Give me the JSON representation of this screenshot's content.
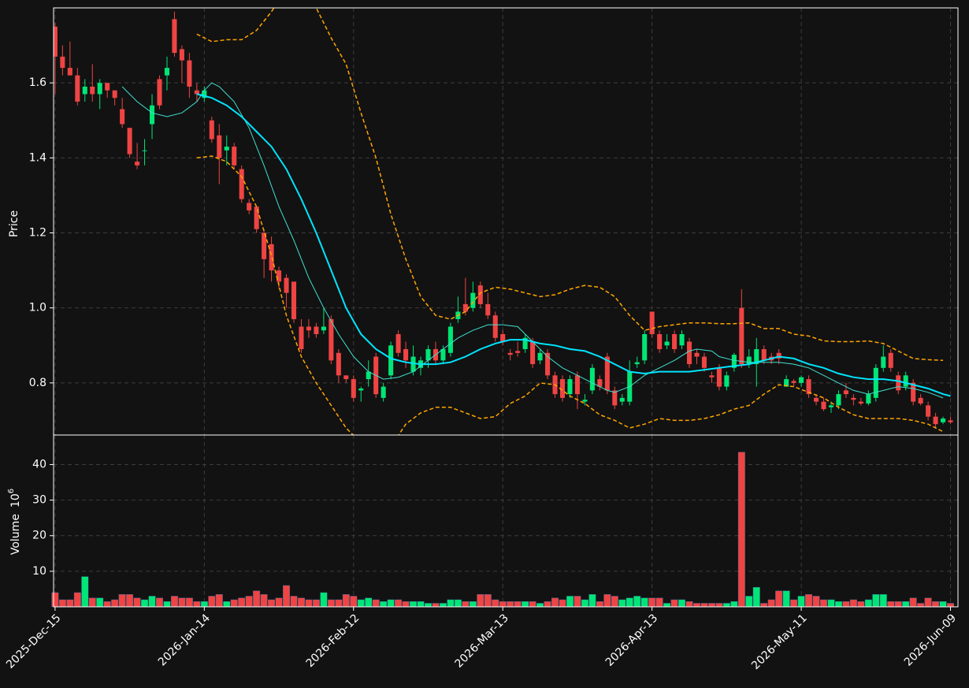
{
  "chart_data": {
    "type": "candlestick",
    "up_color": "#00e676",
    "down_color": "#ef4444",
    "grid": true,
    "ylabel": "Price",
    "xlim": [
      -0.2,
      121
    ],
    "ylim": [
      0.661,
      1.8
    ],
    "yticks": [
      0.8,
      {
        "value": 1,
        "label": "1.0"
      },
      1.2,
      1.4,
      1.6
    ],
    "categories": [
      "2025-Dec-15",
      null,
      null,
      null,
      null,
      null,
      null,
      null,
      null,
      null,
      null,
      null,
      null,
      null,
      null,
      null,
      null,
      null,
      null,
      null,
      "2026-Jan-14",
      null,
      null,
      null,
      null,
      null,
      null,
      null,
      null,
      null,
      null,
      null,
      null,
      null,
      null,
      null,
      null,
      null,
      null,
      null,
      "2026-Feb-12",
      null,
      null,
      null,
      null,
      null,
      null,
      null,
      null,
      null,
      null,
      null,
      null,
      null,
      null,
      null,
      null,
      null,
      null,
      null,
      "2026-Mar-13",
      null,
      null,
      null,
      null,
      null,
      null,
      null,
      null,
      null,
      null,
      null,
      null,
      null,
      null,
      null,
      null,
      null,
      null,
      null,
      "2026-Apr-13",
      null,
      null,
      null,
      null,
      null,
      null,
      null,
      null,
      null,
      null,
      null,
      null,
      null,
      null,
      null,
      null,
      null,
      null,
      null,
      "2026-May-11",
      null,
      null,
      null,
      null,
      null,
      null,
      null,
      null,
      null,
      null,
      null,
      null,
      null,
      null,
      null,
      null,
      null,
      null,
      null,
      "2026-Jun-09"
    ],
    "open": [
      1.75,
      1.67,
      1.64,
      1.62,
      1.57,
      1.59,
      1.57,
      1.6,
      1.58,
      1.53,
      1.48,
      1.39,
      1.42,
      1.49,
      1.61,
      1.62,
      1.77,
      1.69,
      1.66,
      1.58,
      1.56,
      1.5,
      1.46,
      1.42,
      1.43,
      1.37,
      1.28,
      1.27,
      1.2,
      1.17,
      1.1,
      1.08,
      1.07,
      0.95,
      0.95,
      0.95,
      0.94,
      0.97,
      0.88,
      0.82,
      0.81,
      0.78,
      0.81,
      0.87,
      0.76,
      0.82,
      0.93,
      0.89,
      0.83,
      0.84,
      0.86,
      0.89,
      0.86,
      0.88,
      0.97,
      1.01,
      1.0,
      1.06,
      1.01,
      0.98,
      0.93,
      0.88,
      0.885,
      0.89,
      0.91,
      0.86,
      0.88,
      0.82,
      0.81,
      0.77,
      0.82,
      0.75,
      0.78,
      0.81,
      0.87,
      0.78,
      0.75,
      0.75,
      0.85,
      0.86,
      0.99,
      0.93,
      0.9,
      0.93,
      0.9,
      0.91,
      0.88,
      0.87,
      0.82,
      0.84,
      0.79,
      0.84,
      1.0,
      0.85,
      0.85,
      0.89,
      0.87,
      0.88,
      0.79,
      0.805,
      0.8,
      0.81,
      0.76,
      0.75,
      0.735,
      0.74,
      0.78,
      0.76,
      0.75,
      0.745,
      0.76,
      0.84,
      0.88,
      0.82,
      0.79,
      0.8,
      0.76,
      0.74,
      0.71,
      0.695,
      0.7
    ],
    "high": [
      1.76,
      1.7,
      1.71,
      1.64,
      1.61,
      1.65,
      1.61,
      1.6,
      1.58,
      1.56,
      1.48,
      1.44,
      1.45,
      1.57,
      1.62,
      1.67,
      1.79,
      1.7,
      1.68,
      1.6,
      1.59,
      1.51,
      1.49,
      1.46,
      1.44,
      1.38,
      1.29,
      1.27,
      1.21,
      1.19,
      1.11,
      1.09,
      1.07,
      0.97,
      0.97,
      0.96,
      1.0,
      0.98,
      0.89,
      0.82,
      0.82,
      0.79,
      0.86,
      0.88,
      0.8,
      0.91,
      0.94,
      0.91,
      0.9,
      0.87,
      0.9,
      0.91,
      0.9,
      0.96,
      1.03,
      1.08,
      1.07,
      1.07,
      1.04,
      0.99,
      0.94,
      0.89,
      0.91,
      0.93,
      0.92,
      0.89,
      0.89,
      0.83,
      0.82,
      0.82,
      0.83,
      0.77,
      0.85,
      0.82,
      0.88,
      0.79,
      0.77,
      0.86,
      0.87,
      0.94,
      0.99,
      0.94,
      0.93,
      0.94,
      0.94,
      0.92,
      0.89,
      0.88,
      0.83,
      0.85,
      0.83,
      0.88,
      1.05,
      0.89,
      0.92,
      0.9,
      0.88,
      0.89,
      0.82,
      0.81,
      0.82,
      0.82,
      0.77,
      0.76,
      0.75,
      0.78,
      0.8,
      0.77,
      0.76,
      0.78,
      0.85,
      0.9,
      0.89,
      0.83,
      0.83,
      0.81,
      0.77,
      0.75,
      0.72,
      0.71,
      0.71
    ],
    "low": [
      1.57,
      1.62,
      1.62,
      1.54,
      1.55,
      1.55,
      1.53,
      1.56,
      1.54,
      1.48,
      1.4,
      1.37,
      1.38,
      1.45,
      1.53,
      1.58,
      1.67,
      1.6,
      1.56,
      1.55,
      1.55,
      1.44,
      1.33,
      1.38,
      1.37,
      1.28,
      1.25,
      1.2,
      1.08,
      1.07,
      1.05,
      1.0,
      0.96,
      0.88,
      0.92,
      0.92,
      0.93,
      0.85,
      0.8,
      0.8,
      0.75,
      0.75,
      0.79,
      0.76,
      0.75,
      0.81,
      0.87,
      0.84,
      0.82,
      0.82,
      0.84,
      0.85,
      0.85,
      0.87,
      0.96,
      0.98,
      0.99,
      1.0,
      0.97,
      0.91,
      0.9,
      0.86,
      0.87,
      0.88,
      0.84,
      0.85,
      0.81,
      0.76,
      0.75,
      0.76,
      0.73,
      0.74,
      0.77,
      0.78,
      0.77,
      0.73,
      0.74,
      0.74,
      0.84,
      0.85,
      0.92,
      0.88,
      0.89,
      0.88,
      0.89,
      0.84,
      0.85,
      0.83,
      0.8,
      0.78,
      0.78,
      0.83,
      0.84,
      0.84,
      0.79,
      0.85,
      0.85,
      0.85,
      0.79,
      0.79,
      0.79,
      0.76,
      0.74,
      0.725,
      0.72,
      0.73,
      0.76,
      0.74,
      0.74,
      0.74,
      0.75,
      0.83,
      0.83,
      0.77,
      0.78,
      0.74,
      0.74,
      0.7,
      0.68,
      0.69,
      0.69
    ],
    "close": [
      1.67,
      1.64,
      1.62,
      1.55,
      1.59,
      1.57,
      1.6,
      1.58,
      1.56,
      1.49,
      1.41,
      1.38,
      1.42,
      1.54,
      1.54,
      1.64,
      1.68,
      1.66,
      1.59,
      1.57,
      1.58,
      1.45,
      1.4,
      1.43,
      1.38,
      1.29,
      1.26,
      1.21,
      1.13,
      1.1,
      1.07,
      1.04,
      0.97,
      0.89,
      0.94,
      0.93,
      0.95,
      0.86,
      0.82,
      0.81,
      0.76,
      0.785,
      0.83,
      0.77,
      0.79,
      0.9,
      0.88,
      0.86,
      0.87,
      0.86,
      0.89,
      0.86,
      0.89,
      0.95,
      0.99,
      0.99,
      1.04,
      1.01,
      0.98,
      0.92,
      0.91,
      0.875,
      0.88,
      0.92,
      0.85,
      0.88,
      0.82,
      0.77,
      0.76,
      0.81,
      0.77,
      0.755,
      0.84,
      0.79,
      0.78,
      0.74,
      0.76,
      0.83,
      0.855,
      0.93,
      0.93,
      0.89,
      0.91,
      0.89,
      0.93,
      0.85,
      0.87,
      0.84,
      0.815,
      0.79,
      0.82,
      0.875,
      0.85,
      0.87,
      0.89,
      0.86,
      0.86,
      0.865,
      0.81,
      0.8,
      0.815,
      0.77,
      0.75,
      0.73,
      0.74,
      0.77,
      0.77,
      0.755,
      0.745,
      0.77,
      0.84,
      0.87,
      0.84,
      0.78,
      0.82,
      0.75,
      0.745,
      0.71,
      0.69,
      0.705,
      0.695
    ],
    "overlays": [
      {
        "color": "#40e0d0",
        "width": 1,
        "dashed": false,
        "x": [
          9,
          11,
          13,
          15,
          17,
          19,
          20,
          21,
          22,
          24,
          26,
          28,
          30,
          32,
          34,
          36,
          38,
          40,
          42,
          44,
          46,
          48,
          50,
          52,
          54,
          56,
          58,
          60,
          62,
          64,
          66,
          68,
          70,
          72,
          74,
          75,
          77,
          79,
          81,
          83,
          85,
          86,
          88,
          89,
          91,
          93,
          95,
          97,
          99,
          101,
          103,
          105,
          107,
          109,
          111,
          113,
          115,
          117,
          119
        ],
        "values": [
          1.59,
          1.55,
          1.52,
          1.51,
          1.52,
          1.55,
          1.58,
          1.6,
          1.59,
          1.55,
          1.48,
          1.38,
          1.27,
          1.18,
          1.08,
          1.0,
          0.93,
          0.87,
          0.83,
          0.81,
          0.815,
          0.83,
          0.86,
          0.89,
          0.92,
          0.94,
          0.955,
          0.955,
          0.95,
          0.91,
          0.87,
          0.84,
          0.82,
          0.8,
          0.78,
          0.775,
          0.79,
          0.82,
          0.84,
          0.86,
          0.885,
          0.89,
          0.885,
          0.87,
          0.86,
          0.855,
          0.855,
          0.855,
          0.85,
          0.84,
          0.82,
          0.8,
          0.78,
          0.77,
          0.78,
          0.79,
          0.785,
          0.775,
          0.76
        ]
      },
      {
        "color": "#00e5ff",
        "width": 2,
        "dashed": false,
        "x": [
          19,
          21,
          23,
          25,
          27,
          29,
          31,
          33,
          35,
          37,
          39,
          41,
          43,
          45,
          47,
          49,
          51,
          53,
          55,
          57,
          59,
          61,
          63,
          65,
          67,
          69,
          71,
          73,
          75,
          77,
          79,
          81,
          83,
          85,
          87,
          89,
          91,
          93,
          95,
          97,
          99,
          101,
          103,
          105,
          107,
          109,
          111,
          113,
          115,
          117,
          119,
          120
        ],
        "values": [
          1.57,
          1.56,
          1.54,
          1.51,
          1.47,
          1.43,
          1.37,
          1.29,
          1.2,
          1.1,
          1.0,
          0.93,
          0.89,
          0.865,
          0.855,
          0.85,
          0.85,
          0.855,
          0.87,
          0.89,
          0.905,
          0.915,
          0.915,
          0.905,
          0.9,
          0.89,
          0.885,
          0.87,
          0.85,
          0.83,
          0.825,
          0.83,
          0.83,
          0.83,
          0.835,
          0.84,
          0.845,
          0.85,
          0.86,
          0.87,
          0.865,
          0.85,
          0.84,
          0.825,
          0.815,
          0.81,
          0.81,
          0.805,
          0.795,
          0.785,
          0.77,
          0.765
        ]
      },
      {
        "color": "#ffa500",
        "width": 1.5,
        "dashed": true,
        "x": [
          19,
          21,
          23,
          25,
          27,
          29,
          30,
          32,
          34,
          35,
          37,
          39,
          41,
          43,
          45,
          47,
          49,
          51,
          53,
          55,
          57,
          59,
          61,
          63,
          65,
          67,
          69,
          71,
          73,
          75,
          77,
          79,
          81,
          83,
          85,
          87,
          89,
          91,
          93,
          95,
          97,
          99,
          101,
          103,
          105,
          107,
          109,
          111,
          113,
          115,
          117,
          119
        ],
        "values": [
          1.73,
          1.71,
          1.715,
          1.715,
          1.74,
          1.79,
          1.82,
          1.86,
          1.84,
          1.8,
          1.72,
          1.65,
          1.52,
          1.4,
          1.25,
          1.13,
          1.03,
          0.98,
          0.97,
          0.99,
          1.04,
          1.055,
          1.05,
          1.04,
          1.03,
          1.035,
          1.05,
          1.06,
          1.055,
          1.03,
          0.98,
          0.94,
          0.95,
          0.955,
          0.96,
          0.96,
          0.958,
          0.958,
          0.96,
          0.945,
          0.945,
          0.93,
          0.925,
          0.912,
          0.91,
          0.91,
          0.912,
          0.905,
          0.885,
          0.865,
          0.862,
          0.86
        ]
      },
      {
        "color": "#ffa500",
        "width": 1.5,
        "dashed": true,
        "x": [
          19,
          21,
          23,
          25,
          27,
          29,
          31,
          33,
          35,
          37,
          39,
          41,
          43,
          45,
          47,
          49,
          51,
          53,
          55,
          57,
          59,
          61,
          63,
          65,
          67,
          69,
          71,
          73,
          75,
          77,
          79,
          81,
          83,
          85,
          87,
          89,
          91,
          93,
          95,
          97,
          99,
          101,
          103,
          105,
          107,
          109,
          111,
          113,
          115,
          117,
          119
        ],
        "values": [
          1.4,
          1.405,
          1.39,
          1.35,
          1.27,
          1.14,
          0.98,
          0.87,
          0.8,
          0.74,
          0.68,
          0.64,
          0.62,
          0.63,
          0.69,
          0.72,
          0.735,
          0.735,
          0.72,
          0.705,
          0.71,
          0.745,
          0.765,
          0.8,
          0.795,
          0.765,
          0.745,
          0.715,
          0.7,
          0.68,
          0.69,
          0.705,
          0.7,
          0.7,
          0.705,
          0.715,
          0.73,
          0.74,
          0.77,
          0.795,
          0.79,
          0.775,
          0.76,
          0.735,
          0.715,
          0.705,
          0.705,
          0.705,
          0.7,
          0.69,
          0.67
        ]
      }
    ],
    "volume": {
      "ylabel": "Volume",
      "scale_base": "10",
      "scale_exponent": "6",
      "ylim": [
        0,
        48.3
      ],
      "yticks": [
        10,
        20,
        30,
        40
      ],
      "values": [
        4,
        2,
        2,
        4,
        8.5,
        2.5,
        2.5,
        1.5,
        2,
        3.5,
        3.5,
        2.5,
        2,
        3,
        2.5,
        1.5,
        3,
        2.5,
        2.5,
        1.5,
        1.5,
        3,
        3.5,
        1.5,
        2,
        2.5,
        3,
        4.5,
        3.5,
        2,
        2.5,
        6,
        3,
        2.5,
        2,
        2,
        4,
        2,
        2,
        3.5,
        3,
        2,
        2.5,
        2,
        1.5,
        2,
        2,
        1.5,
        1.5,
        1.5,
        1,
        1,
        1,
        2,
        2,
        1.5,
        1.5,
        3.5,
        3.5,
        2,
        1.5,
        1.5,
        1.5,
        1.5,
        1.5,
        1,
        1.5,
        2.5,
        2,
        3,
        3,
        2,
        3.5,
        1.5,
        3.5,
        3,
        2,
        2.5,
        3,
        2.5,
        2.5,
        2.5,
        1,
        2,
        2,
        1.5,
        1,
        1,
        1,
        1,
        1,
        1.5,
        43.5,
        3,
        5.5,
        1,
        2,
        4.5,
        4.5,
        2,
        3,
        3.5,
        3,
        2,
        2,
        1.5,
        1.5,
        2,
        1.5,
        2,
        3.5,
        3.5,
        1.5,
        1.5,
        1.5,
        2.5,
        1,
        2.5,
        1.5,
        1.5,
        1
      ]
    }
  }
}
